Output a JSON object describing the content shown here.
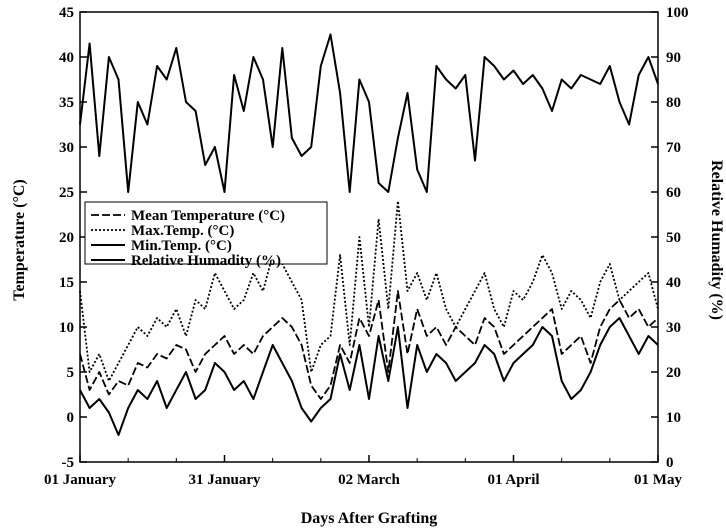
{
  "chart_data": {
    "type": "line",
    "title": "",
    "xlabel": "Days After Grafting",
    "ylabel_left": "Temperature (°C)",
    "ylabel_right": "Relative Humadity (%)",
    "x_tick_labels": [
      "01 January",
      "31 January",
      "02 March",
      "01 April",
      "01 May"
    ],
    "x_tick_days": [
      0,
      30,
      60,
      90,
      120
    ],
    "xlim": [
      0,
      120
    ],
    "ylim_left": [
      -5,
      45
    ],
    "ylim_right": [
      0,
      100
    ],
    "y_ticks_left": [
      "45",
      "40",
      "35",
      "30",
      "25",
      "20",
      "15",
      "10",
      "5",
      "0",
      "-5"
    ],
    "y_ticks_right": [
      "100",
      "90",
      "80",
      "70",
      "60",
      "50",
      "40",
      "30",
      "20",
      "10",
      "0"
    ],
    "legend_position": "center-left",
    "grid": false,
    "series": [
      {
        "name": "Mean Temperature (°C)",
        "style": "dashed",
        "axis": "left",
        "x": [
          0,
          2,
          4,
          6,
          8,
          10,
          12,
          14,
          16,
          18,
          20,
          22,
          24,
          26,
          28,
          30,
          32,
          34,
          36,
          38,
          40,
          42,
          44,
          46,
          48,
          50,
          52,
          54,
          56,
          58,
          60,
          62,
          64,
          66,
          68,
          70,
          72,
          74,
          76,
          78,
          80,
          82,
          84,
          86,
          88,
          90,
          92,
          94,
          96,
          98,
          100,
          102,
          104,
          106,
          108,
          110,
          112,
          114,
          116,
          118,
          120
        ],
        "values": [
          7,
          3,
          5,
          2.5,
          4,
          3.5,
          6,
          5.5,
          7,
          6.5,
          8,
          7.5,
          5,
          7,
          8,
          9,
          7,
          8,
          7,
          9,
          10,
          11,
          10,
          8,
          3.5,
          2,
          3.5,
          8,
          6,
          11,
          9,
          13,
          5,
          14,
          7,
          12,
          9,
          10,
          8,
          10,
          9,
          8,
          11,
          10,
          7,
          8,
          9,
          10,
          11,
          12,
          7,
          8,
          9,
          6,
          10,
          12,
          13,
          11,
          12,
          10,
          11
        ]
      },
      {
        "name": "Max.Temp. (°C)",
        "style": "dotted",
        "axis": "left",
        "x": [
          0,
          2,
          4,
          6,
          8,
          10,
          12,
          14,
          16,
          18,
          20,
          22,
          24,
          26,
          28,
          30,
          32,
          34,
          36,
          38,
          40,
          42,
          44,
          46,
          48,
          50,
          52,
          54,
          56,
          58,
          60,
          62,
          64,
          66,
          68,
          70,
          72,
          74,
          76,
          78,
          80,
          82,
          84,
          86,
          88,
          90,
          92,
          94,
          96,
          98,
          100,
          102,
          104,
          106,
          108,
          110,
          112,
          114,
          116,
          118,
          120
        ],
        "values": [
          14,
          5,
          7,
          4,
          6,
          8,
          10,
          9,
          11,
          10,
          12,
          9,
          13,
          12,
          16,
          14,
          12,
          13,
          16,
          14,
          18,
          17,
          15,
          13,
          5,
          8,
          9,
          18,
          8,
          20,
          10,
          22,
          12,
          24,
          14,
          16,
          13,
          16,
          12,
          10,
          12,
          14,
          16,
          12,
          10,
          14,
          13,
          15,
          18,
          16,
          12,
          14,
          13,
          11,
          15,
          17,
          13,
          14,
          15,
          16,
          12
        ]
      },
      {
        "name": "Min.Temp. (°C)",
        "style": "solid",
        "axis": "left",
        "x": [
          0,
          2,
          4,
          6,
          8,
          10,
          12,
          14,
          16,
          18,
          20,
          22,
          24,
          26,
          28,
          30,
          32,
          34,
          36,
          38,
          40,
          42,
          44,
          46,
          48,
          50,
          52,
          54,
          56,
          58,
          60,
          62,
          64,
          66,
          68,
          70,
          72,
          74,
          76,
          78,
          80,
          82,
          84,
          86,
          88,
          90,
          92,
          94,
          96,
          98,
          100,
          102,
          104,
          106,
          108,
          110,
          112,
          114,
          116,
          118,
          120
        ],
        "values": [
          3,
          1,
          2,
          0.5,
          -2,
          1,
          3,
          2,
          4,
          1,
          3,
          5,
          2,
          3,
          6,
          5,
          3,
          4,
          2,
          5,
          8,
          6,
          4,
          1,
          -0.5,
          1,
          2,
          7,
          3,
          8,
          2,
          9,
          4,
          10,
          1,
          8,
          5,
          7,
          6,
          4,
          5,
          6,
          8,
          7,
          4,
          6,
          7,
          8,
          10,
          9,
          4,
          2,
          3,
          5,
          8,
          10,
          11,
          9,
          7,
          9,
          8
        ]
      },
      {
        "name": "Relative Humadity (%)",
        "style": "solid",
        "axis": "right",
        "x": [
          0,
          2,
          4,
          6,
          8,
          10,
          12,
          14,
          16,
          18,
          20,
          22,
          24,
          26,
          28,
          30,
          32,
          34,
          36,
          38,
          40,
          42,
          44,
          46,
          48,
          50,
          52,
          54,
          56,
          58,
          60,
          62,
          64,
          66,
          68,
          70,
          72,
          74,
          76,
          78,
          80,
          82,
          84,
          86,
          88,
          90,
          92,
          94,
          96,
          98,
          100,
          102,
          104,
          106,
          108,
          110,
          112,
          114,
          116,
          118,
          120
        ],
        "values": [
          75,
          93,
          68,
          90,
          85,
          60,
          80,
          75,
          88,
          85,
          92,
          80,
          78,
          66,
          70,
          60,
          86,
          78,
          90,
          85,
          70,
          92,
          72,
          68,
          70,
          88,
          95,
          82,
          60,
          85,
          80,
          62,
          60,
          72,
          82,
          65,
          60,
          88,
          85,
          83,
          86,
          67,
          90,
          88,
          85,
          87,
          84,
          86,
          83,
          78,
          85,
          83,
          86,
          85,
          84,
          88,
          80,
          75,
          86,
          90,
          84
        ]
      }
    ]
  }
}
